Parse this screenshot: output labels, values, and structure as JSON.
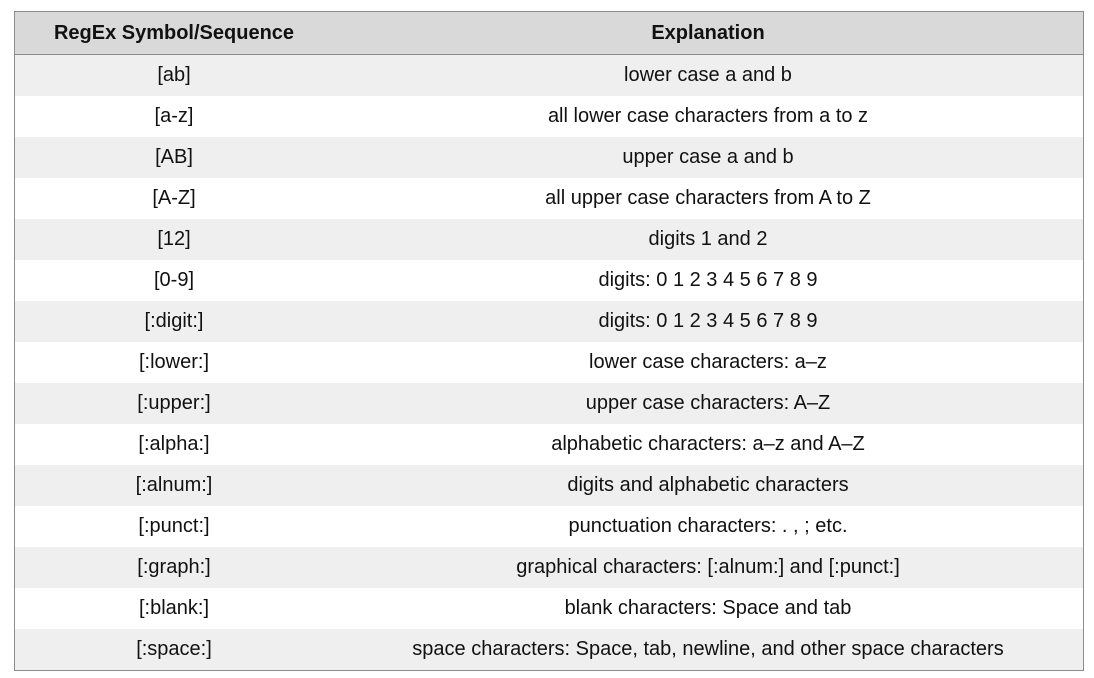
{
  "table": {
    "headers": [
      "RegEx Symbol/Sequence",
      "Explanation"
    ],
    "rows": [
      [
        "[ab]",
        "lower case a and b"
      ],
      [
        "[a-z]",
        "all lower case characters from a to z"
      ],
      [
        "[AB]",
        "upper case a and b"
      ],
      [
        "[A-Z]",
        "all upper case characters from A to Z"
      ],
      [
        "[12]",
        "digits 1 and 2"
      ],
      [
        "[0-9]",
        "digits: 0 1 2 3 4 5 6 7 8 9"
      ],
      [
        "[:digit:]",
        "digits: 0 1 2 3 4 5 6 7 8 9"
      ],
      [
        "[:lower:]",
        "lower case characters: a–z"
      ],
      [
        "[:upper:]",
        "upper case characters: A–Z"
      ],
      [
        "[:alpha:]",
        "alphabetic characters: a–z and A–Z"
      ],
      [
        "[:alnum:]",
        "digits and alphabetic characters"
      ],
      [
        "[:punct:]",
        "punctuation characters: . , ; etc."
      ],
      [
        "[:graph:]",
        "graphical characters: [:alnum:] and [:punct:]"
      ],
      [
        "[:blank:]",
        "blank characters: Space and tab"
      ],
      [
        "[:space:]",
        "space characters: Space, tab, newline, and other space characters"
      ]
    ]
  }
}
